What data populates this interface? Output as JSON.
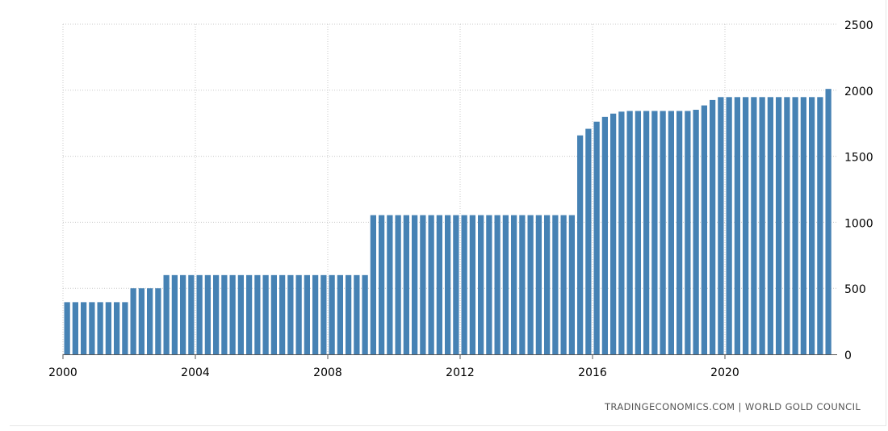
{
  "chart_data": {
    "type": "bar",
    "title": "",
    "xlabel": "",
    "ylabel": "",
    "x_ticks": [
      "2000",
      "2004",
      "2008",
      "2012",
      "2016",
      "2020"
    ],
    "y_ticks": [
      "0",
      "500",
      "1000",
      "1500",
      "2000",
      "2500"
    ],
    "ylim": [
      0,
      2500
    ],
    "xlim": [
      "2000-Q1",
      "2023-Q1"
    ],
    "y_axis_position": "right",
    "grid": true,
    "bar_color": "#4682b4",
    "quarters": [
      "2000-Q1",
      "2000-Q2",
      "2000-Q3",
      "2000-Q4",
      "2001-Q1",
      "2001-Q2",
      "2001-Q3",
      "2001-Q4",
      "2002-Q1",
      "2002-Q2",
      "2002-Q3",
      "2002-Q4",
      "2003-Q1",
      "2003-Q2",
      "2003-Q3",
      "2003-Q4",
      "2004-Q1",
      "2004-Q2",
      "2004-Q3",
      "2004-Q4",
      "2005-Q1",
      "2005-Q2",
      "2005-Q3",
      "2005-Q4",
      "2006-Q1",
      "2006-Q2",
      "2006-Q3",
      "2006-Q4",
      "2007-Q1",
      "2007-Q2",
      "2007-Q3",
      "2007-Q4",
      "2008-Q1",
      "2008-Q2",
      "2008-Q3",
      "2008-Q4",
      "2009-Q1",
      "2009-Q2",
      "2009-Q3",
      "2009-Q4",
      "2010-Q1",
      "2010-Q2",
      "2010-Q3",
      "2010-Q4",
      "2011-Q1",
      "2011-Q2",
      "2011-Q3",
      "2011-Q4",
      "2012-Q1",
      "2012-Q2",
      "2012-Q3",
      "2012-Q4",
      "2013-Q1",
      "2013-Q2",
      "2013-Q3",
      "2013-Q4",
      "2014-Q1",
      "2014-Q2",
      "2014-Q3",
      "2014-Q4",
      "2015-Q1",
      "2015-Q2",
      "2015-Q3",
      "2015-Q4",
      "2016-Q1",
      "2016-Q2",
      "2016-Q3",
      "2016-Q4",
      "2017-Q1",
      "2017-Q2",
      "2017-Q3",
      "2017-Q4",
      "2018-Q1",
      "2018-Q2",
      "2018-Q3",
      "2018-Q4",
      "2019-Q1",
      "2019-Q2",
      "2019-Q3",
      "2019-Q4",
      "2020-Q1",
      "2020-Q2",
      "2020-Q3",
      "2020-Q4",
      "2021-Q1",
      "2021-Q2",
      "2021-Q3",
      "2021-Q4",
      "2022-Q1",
      "2022-Q2",
      "2022-Q3",
      "2022-Q4",
      "2023-Q1"
    ],
    "values": [
      395,
      395,
      395,
      395,
      395,
      395,
      395,
      395,
      500,
      500,
      500,
      500,
      600,
      600,
      600,
      600,
      600,
      600,
      600,
      600,
      600,
      600,
      600,
      600,
      600,
      600,
      600,
      600,
      600,
      600,
      600,
      600,
      600,
      600,
      600,
      600,
      600,
      1054,
      1054,
      1054,
      1054,
      1054,
      1054,
      1054,
      1054,
      1054,
      1054,
      1054,
      1054,
      1054,
      1054,
      1054,
      1054,
      1054,
      1054,
      1054,
      1054,
      1054,
      1054,
      1054,
      1054,
      1054,
      1658,
      1708,
      1762,
      1798,
      1823,
      1838,
      1843,
      1843,
      1843,
      1843,
      1843,
      1843,
      1843,
      1843,
      1852,
      1885,
      1926,
      1948,
      1948,
      1948,
      1948,
      1948,
      1948,
      1948,
      1948,
      1948,
      1948,
      1948,
      1948,
      1948,
      2010
    ]
  },
  "footer": {
    "source": "TRADINGECONOMICS.COM  |  WORLD GOLD COUNCIL"
  }
}
